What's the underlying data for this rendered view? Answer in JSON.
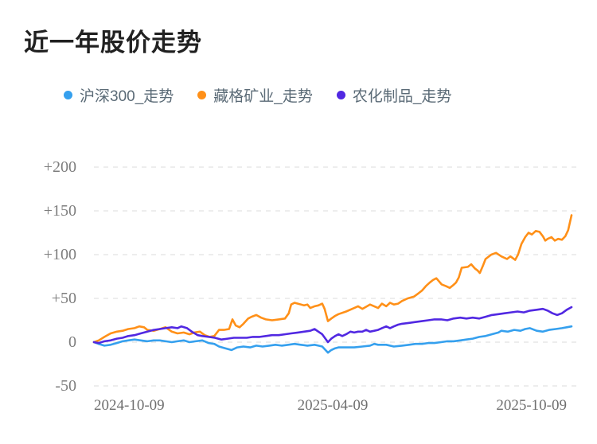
{
  "page": {
    "background": "#ffffff"
  },
  "header": {
    "title": "近一年股价走势"
  },
  "legend": {
    "items": [
      {
        "label": "沪深300_走势",
        "color": "#35a0ee"
      },
      {
        "label": "藏格矿业_走势",
        "color": "#ff9018"
      },
      {
        "label": "农化制品_走势",
        "color": "#5128e2"
      }
    ]
  },
  "chart_data": {
    "type": "line",
    "title": "近一年股价走势",
    "unit": "percent_change_vs_start",
    "legend_position": "top",
    "grid": "horizontal-dashed",
    "grid_color": "#e7e7e7",
    "x_axis": {
      "tick_labels": [
        "2024-10-09",
        "2025-04-09",
        "2025-10-09"
      ],
      "range": [
        "2024-10-09",
        "2025-10-09"
      ]
    },
    "y_axis": {
      "tick_labels": [
        "+200",
        "+150",
        "+100",
        "+50",
        "0",
        "-50"
      ],
      "tick_values": [
        200,
        150,
        100,
        50,
        0,
        -50
      ],
      "range": [
        -50,
        200
      ]
    },
    "series": [
      {
        "name": "沪深300_走势",
        "color": "#35a0ee",
        "points": [
          [
            0.0,
            0
          ],
          [
            0.01,
            -2
          ],
          [
            0.022,
            -4
          ],
          [
            0.035,
            -3
          ],
          [
            0.048,
            -1
          ],
          [
            0.06,
            1
          ],
          [
            0.072,
            2
          ],
          [
            0.085,
            3
          ],
          [
            0.098,
            2
          ],
          [
            0.112,
            1
          ],
          [
            0.125,
            2
          ],
          [
            0.138,
            2
          ],
          [
            0.15,
            1
          ],
          [
            0.163,
            0
          ],
          [
            0.175,
            1
          ],
          [
            0.188,
            2
          ],
          [
            0.2,
            0
          ],
          [
            0.213,
            1
          ],
          [
            0.227,
            2
          ],
          [
            0.24,
            -1
          ],
          [
            0.252,
            -2
          ],
          [
            0.262,
            -5
          ],
          [
            0.275,
            -7
          ],
          [
            0.288,
            -9
          ],
          [
            0.3,
            -6
          ],
          [
            0.313,
            -5
          ],
          [
            0.327,
            -6
          ],
          [
            0.34,
            -4
          ],
          [
            0.353,
            -5
          ],
          [
            0.367,
            -4
          ],
          [
            0.38,
            -3
          ],
          [
            0.393,
            -4
          ],
          [
            0.407,
            -3
          ],
          [
            0.42,
            -2
          ],
          [
            0.433,
            -3
          ],
          [
            0.447,
            -4
          ],
          [
            0.462,
            -3
          ],
          [
            0.47,
            -4
          ],
          [
            0.478,
            -5
          ],
          [
            0.49,
            -12
          ],
          [
            0.497,
            -9
          ],
          [
            0.505,
            -7
          ],
          [
            0.512,
            -6
          ],
          [
            0.528,
            -6
          ],
          [
            0.545,
            -6
          ],
          [
            0.562,
            -5
          ],
          [
            0.578,
            -4
          ],
          [
            0.587,
            -2
          ],
          [
            0.595,
            -3
          ],
          [
            0.612,
            -3
          ],
          [
            0.628,
            -5
          ],
          [
            0.645,
            -4
          ],
          [
            0.66,
            -3
          ],
          [
            0.673,
            -2
          ],
          [
            0.687,
            -2
          ],
          [
            0.7,
            -1
          ],
          [
            0.713,
            -1
          ],
          [
            0.727,
            0
          ],
          [
            0.74,
            1
          ],
          [
            0.753,
            1
          ],
          [
            0.767,
            2
          ],
          [
            0.78,
            3
          ],
          [
            0.793,
            4
          ],
          [
            0.807,
            6
          ],
          [
            0.82,
            7
          ],
          [
            0.833,
            9
          ],
          [
            0.847,
            11
          ],
          [
            0.853,
            13
          ],
          [
            0.867,
            12
          ],
          [
            0.88,
            14
          ],
          [
            0.893,
            13
          ],
          [
            0.903,
            15
          ],
          [
            0.913,
            16
          ],
          [
            0.927,
            13
          ],
          [
            0.94,
            12
          ],
          [
            0.953,
            14
          ],
          [
            0.967,
            15
          ],
          [
            0.98,
            16
          ],
          [
            0.99,
            17
          ],
          [
            1.0,
            18
          ]
        ]
      },
      {
        "name": "藏格矿业_走势",
        "color": "#ff9018",
        "points": [
          [
            0.0,
            0
          ],
          [
            0.01,
            2
          ],
          [
            0.022,
            6
          ],
          [
            0.035,
            10
          ],
          [
            0.048,
            12
          ],
          [
            0.06,
            13
          ],
          [
            0.072,
            15
          ],
          [
            0.085,
            16
          ],
          [
            0.095,
            18
          ],
          [
            0.105,
            17
          ],
          [
            0.112,
            14
          ],
          [
            0.125,
            13
          ],
          [
            0.138,
            15
          ],
          [
            0.15,
            17
          ],
          [
            0.163,
            12
          ],
          [
            0.175,
            10
          ],
          [
            0.188,
            11
          ],
          [
            0.2,
            9
          ],
          [
            0.21,
            11
          ],
          [
            0.222,
            12
          ],
          [
            0.232,
            8
          ],
          [
            0.242,
            6
          ],
          [
            0.252,
            7
          ],
          [
            0.262,
            14
          ],
          [
            0.272,
            14
          ],
          [
            0.283,
            15
          ],
          [
            0.29,
            26
          ],
          [
            0.297,
            19
          ],
          [
            0.305,
            17
          ],
          [
            0.313,
            21
          ],
          [
            0.323,
            27
          ],
          [
            0.33,
            29
          ],
          [
            0.34,
            31
          ],
          [
            0.35,
            28
          ],
          [
            0.36,
            26
          ],
          [
            0.373,
            25
          ],
          [
            0.387,
            26
          ],
          [
            0.4,
            27
          ],
          [
            0.408,
            33
          ],
          [
            0.413,
            43
          ],
          [
            0.42,
            45
          ],
          [
            0.427,
            44
          ],
          [
            0.44,
            42
          ],
          [
            0.447,
            43
          ],
          [
            0.453,
            39
          ],
          [
            0.462,
            41
          ],
          [
            0.47,
            42
          ],
          [
            0.478,
            44
          ],
          [
            0.483,
            38
          ],
          [
            0.49,
            24
          ],
          [
            0.497,
            27
          ],
          [
            0.505,
            30
          ],
          [
            0.512,
            32
          ],
          [
            0.528,
            35
          ],
          [
            0.545,
            39
          ],
          [
            0.553,
            41
          ],
          [
            0.562,
            38
          ],
          [
            0.578,
            43
          ],
          [
            0.595,
            39
          ],
          [
            0.603,
            44
          ],
          [
            0.612,
            41
          ],
          [
            0.62,
            45
          ],
          [
            0.628,
            43
          ],
          [
            0.637,
            44
          ],
          [
            0.645,
            47
          ],
          [
            0.657,
            50
          ],
          [
            0.67,
            52
          ],
          [
            0.68,
            56
          ],
          [
            0.687,
            59
          ],
          [
            0.695,
            64
          ],
          [
            0.703,
            68
          ],
          [
            0.71,
            71
          ],
          [
            0.717,
            73
          ],
          [
            0.728,
            66
          ],
          [
            0.737,
            64
          ],
          [
            0.745,
            62
          ],
          [
            0.752,
            65
          ],
          [
            0.758,
            68
          ],
          [
            0.764,
            74
          ],
          [
            0.77,
            85
          ],
          [
            0.783,
            86
          ],
          [
            0.79,
            89
          ],
          [
            0.798,
            84
          ],
          [
            0.803,
            82
          ],
          [
            0.808,
            79
          ],
          [
            0.815,
            88
          ],
          [
            0.82,
            95
          ],
          [
            0.832,
            100
          ],
          [
            0.842,
            102
          ],
          [
            0.853,
            98
          ],
          [
            0.865,
            95
          ],
          [
            0.872,
            98
          ],
          [
            0.882,
            94
          ],
          [
            0.888,
            100
          ],
          [
            0.895,
            112
          ],
          [
            0.903,
            120
          ],
          [
            0.91,
            125
          ],
          [
            0.917,
            123
          ],
          [
            0.925,
            127
          ],
          [
            0.933,
            126
          ],
          [
            0.94,
            121
          ],
          [
            0.945,
            116
          ],
          [
            0.95,
            118
          ],
          [
            0.958,
            120
          ],
          [
            0.965,
            116
          ],
          [
            0.972,
            118
          ],
          [
            0.98,
            117
          ],
          [
            0.987,
            121
          ],
          [
            0.993,
            128
          ],
          [
            1.0,
            145
          ]
        ]
      },
      {
        "name": "农化制品_走势",
        "color": "#5128e2",
        "points": [
          [
            0.0,
            0
          ],
          [
            0.01,
            -1
          ],
          [
            0.022,
            1
          ],
          [
            0.035,
            2
          ],
          [
            0.048,
            4
          ],
          [
            0.06,
            5
          ],
          [
            0.072,
            7
          ],
          [
            0.085,
            8
          ],
          [
            0.098,
            10
          ],
          [
            0.112,
            12
          ],
          [
            0.125,
            14
          ],
          [
            0.138,
            15
          ],
          [
            0.15,
            16
          ],
          [
            0.163,
            17
          ],
          [
            0.175,
            16
          ],
          [
            0.183,
            18
          ],
          [
            0.195,
            16
          ],
          [
            0.205,
            12
          ],
          [
            0.217,
            8
          ],
          [
            0.227,
            7
          ],
          [
            0.24,
            6
          ],
          [
            0.253,
            5
          ],
          [
            0.267,
            3
          ],
          [
            0.28,
            4
          ],
          [
            0.293,
            5
          ],
          [
            0.307,
            5
          ],
          [
            0.32,
            5
          ],
          [
            0.333,
            6
          ],
          [
            0.347,
            6
          ],
          [
            0.36,
            7
          ],
          [
            0.373,
            8
          ],
          [
            0.387,
            8
          ],
          [
            0.4,
            9
          ],
          [
            0.413,
            10
          ],
          [
            0.427,
            11
          ],
          [
            0.44,
            12
          ],
          [
            0.453,
            13
          ],
          [
            0.462,
            15
          ],
          [
            0.47,
            12
          ],
          [
            0.478,
            9
          ],
          [
            0.49,
            0
          ],
          [
            0.497,
            4
          ],
          [
            0.505,
            7
          ],
          [
            0.512,
            9
          ],
          [
            0.52,
            7
          ],
          [
            0.528,
            9
          ],
          [
            0.537,
            12
          ],
          [
            0.545,
            11
          ],
          [
            0.553,
            12
          ],
          [
            0.562,
            12
          ],
          [
            0.57,
            14
          ],
          [
            0.578,
            12
          ],
          [
            0.587,
            13
          ],
          [
            0.595,
            14
          ],
          [
            0.603,
            16
          ],
          [
            0.612,
            18
          ],
          [
            0.62,
            16
          ],
          [
            0.628,
            18
          ],
          [
            0.637,
            20
          ],
          [
            0.645,
            21
          ],
          [
            0.66,
            22
          ],
          [
            0.673,
            23
          ],
          [
            0.687,
            24
          ],
          [
            0.7,
            25
          ],
          [
            0.713,
            26
          ],
          [
            0.727,
            26
          ],
          [
            0.74,
            25
          ],
          [
            0.753,
            27
          ],
          [
            0.767,
            28
          ],
          [
            0.78,
            27
          ],
          [
            0.793,
            28
          ],
          [
            0.807,
            27
          ],
          [
            0.82,
            29
          ],
          [
            0.833,
            31
          ],
          [
            0.847,
            32
          ],
          [
            0.86,
            33
          ],
          [
            0.873,
            34
          ],
          [
            0.887,
            35
          ],
          [
            0.9,
            34
          ],
          [
            0.913,
            36
          ],
          [
            0.927,
            37
          ],
          [
            0.94,
            38
          ],
          [
            0.95,
            36
          ],
          [
            0.96,
            33
          ],
          [
            0.97,
            31
          ],
          [
            0.98,
            33
          ],
          [
            0.99,
            37
          ],
          [
            1.0,
            40
          ]
        ]
      }
    ]
  }
}
